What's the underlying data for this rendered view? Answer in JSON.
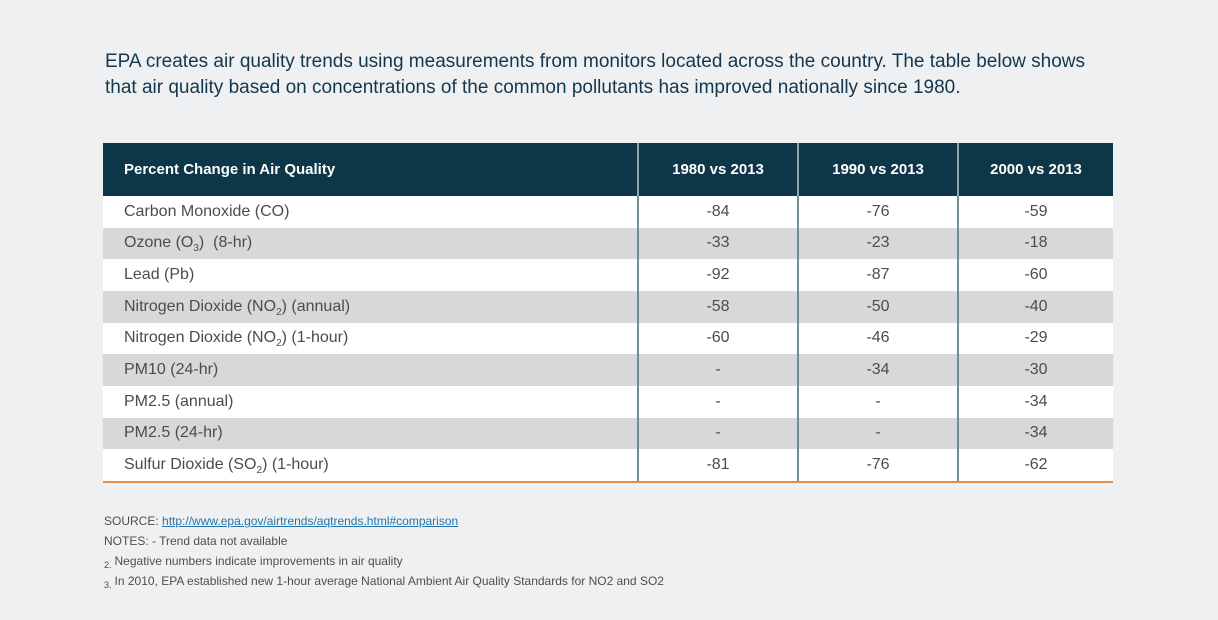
{
  "page": {
    "intro": "EPA creates air quality trends using measurements from monitors located across the country. The table below shows that air quality based on concentrations of the common pollutants has improved nationally since 1980."
  },
  "colors": {
    "background": "#eff0f1",
    "header_bg": "#0d3648",
    "row_alt": "#d8d8da",
    "column_divider": "#6f8c99",
    "accent_orange": "#ed8c3e",
    "link_blue": "#2377ae",
    "intro_text": "#14374e",
    "body_text": "#4c4c4c"
  },
  "table": {
    "columns": [
      "Percent Change in Air Quality",
      "1980 vs 2013",
      "1990 vs 2013",
      "2000 vs 2013"
    ],
    "rows": [
      {
        "label_pre": "Carbon Monoxide (CO)",
        "label_sub": "",
        "label_post": "",
        "values": [
          "-84",
          "-76",
          "-59"
        ]
      },
      {
        "label_pre": "Ozone (O",
        "label_sub": "3",
        "label_post": ")  (8-hr)",
        "values": [
          "-33",
          "-23",
          "-18"
        ]
      },
      {
        "label_pre": "Lead (Pb)",
        "label_sub": "",
        "label_post": "",
        "values": [
          "-92",
          "-87",
          "-60"
        ]
      },
      {
        "label_pre": "Nitrogen Dioxide (NO",
        "label_sub": "2",
        "label_post": ") (annual)",
        "values": [
          "-58",
          "-50",
          "-40"
        ]
      },
      {
        "label_pre": "Nitrogen Dioxide (NO",
        "label_sub": "2",
        "label_post": ") (1-hour)",
        "values": [
          "-60",
          "-46",
          "-29"
        ]
      },
      {
        "label_pre": "PM10 (24-hr)",
        "label_sub": "",
        "label_post": "",
        "values": [
          "-",
          "-34",
          "-30"
        ]
      },
      {
        "label_pre": "PM2.5 (annual)",
        "label_sub": "",
        "label_post": "",
        "values": [
          "-",
          "-",
          "-34"
        ]
      },
      {
        "label_pre": "PM2.5 (24-hr)",
        "label_sub": "",
        "label_post": "",
        "values": [
          "-",
          "-",
          "-34"
        ]
      },
      {
        "label_pre": "Sulfur Dioxide (SO",
        "label_sub": "2",
        "label_post": ") (1-hour)",
        "values": [
          "-81",
          "-76",
          "-62"
        ]
      }
    ]
  },
  "chart_data": {
    "type": "table",
    "title": "Percent Change in Air Quality",
    "columns": [
      "1980 vs 2013",
      "1990 vs 2013",
      "2000 vs 2013"
    ],
    "rows": [
      {
        "pollutant": "Carbon Monoxide (CO)",
        "values": [
          -84,
          -76,
          -59
        ]
      },
      {
        "pollutant": "Ozone (O3) (8-hr)",
        "values": [
          -33,
          -23,
          -18
        ]
      },
      {
        "pollutant": "Lead (Pb)",
        "values": [
          -92,
          -87,
          -60
        ]
      },
      {
        "pollutant": "Nitrogen Dioxide (NO2) (annual)",
        "values": [
          -58,
          -50,
          -40
        ]
      },
      {
        "pollutant": "Nitrogen Dioxide (NO2) (1-hour)",
        "values": [
          -60,
          -46,
          -29
        ]
      },
      {
        "pollutant": "PM10 (24-hr)",
        "values": [
          null,
          -34,
          -30
        ]
      },
      {
        "pollutant": "PM2.5 (annual)",
        "values": [
          null,
          null,
          -34
        ]
      },
      {
        "pollutant": "PM2.5 (24-hr)",
        "values": [
          null,
          null,
          -34
        ]
      },
      {
        "pollutant": "Sulfur Dioxide (SO2) (1-hour)",
        "values": [
          -81,
          -76,
          -62
        ]
      }
    ],
    "note": "- means trend data not available; negative numbers indicate improvements in air quality"
  },
  "footer": {
    "source_label": "SOURCE:",
    "source_link": "http://www.epa.gov/airtrends/aqtrends.html#comparison",
    "notes_line": "NOTES: - Trend data not available",
    "note2_marker": "2.",
    "note2_text": "Negative numbers indicate improvements in air quality",
    "note3_marker": "3.",
    "note3_text": "In 2010, EPA established new 1-hour average National Ambient Air Quality Standards for NO2 and SO2"
  }
}
